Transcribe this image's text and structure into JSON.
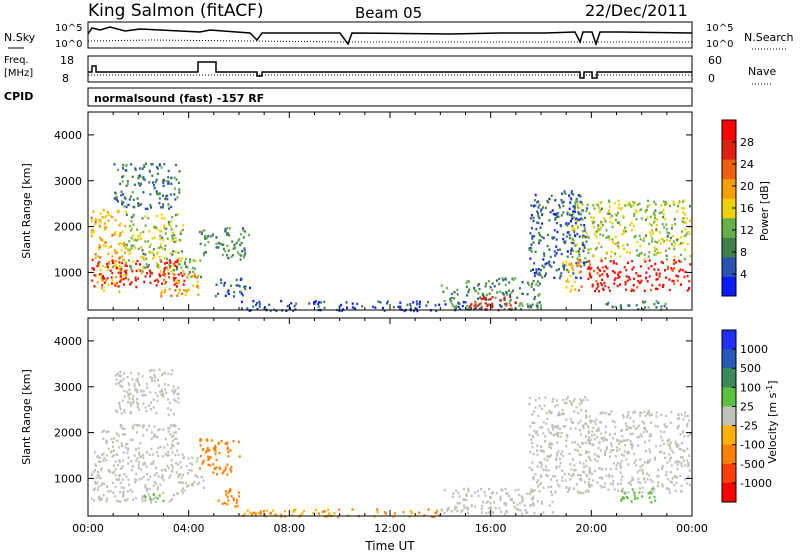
{
  "header": {
    "station": "King Salmon (fitACF)",
    "beam": "Beam 05",
    "date": "22/Dec/2011"
  },
  "params": {
    "nsky_label": "N.Sky",
    "nsky_ticks": [
      "10^5",
      "10^0"
    ],
    "nsearch_label": "N.Search",
    "freq_label_1": "Freq.",
    "freq_label_2": "[MHz]",
    "freq_ticks": [
      "18",
      "8"
    ],
    "nave_label": "Nave",
    "nave_ticks": [
      "60",
      "0"
    ],
    "cpid_label": "CPID",
    "cpid_text": "normalsound (fast) -157 RF"
  },
  "colors": {
    "power_scale": [
      "#0a1aff",
      "#2a52b0",
      "#3f7f4a",
      "#66b04a",
      "#f0d000",
      "#f5a000",
      "#ee6010",
      "#e02010",
      "#ff0000"
    ],
    "velocity_scale": [
      "#2030ff",
      "#2858b8",
      "#3a8a5a",
      "#5cc040",
      "#c0c0b8",
      "#ffb000",
      "#ff8000",
      "#ff4000",
      "#ff0000"
    ]
  },
  "chart_data": [
    {
      "type": "heatmap",
      "name": "power-panel",
      "xlabel": "",
      "ylabel": "Slant Range [km]",
      "ylim": [
        180,
        4500
      ],
      "xlim_hours": [
        0,
        24
      ],
      "yticks": [
        "1000",
        "2000",
        "3000",
        "4000"
      ],
      "colorbar": {
        "label": "Power [dB]",
        "range": [
          0,
          32
        ],
        "ticks": [
          "4",
          "8",
          "12",
          "16",
          "20",
          "24",
          "28"
        ]
      },
      "echo_regions": [
        {
          "t0": 0.1,
          "t1": 1.5,
          "r0": 600,
          "r1": 2400,
          "dB": 18
        },
        {
          "t0": 0.1,
          "t1": 3.8,
          "r0": 700,
          "r1": 1300,
          "dB": 28
        },
        {
          "t0": 1.5,
          "t1": 3.8,
          "r0": 1000,
          "r1": 2300,
          "dB": 14
        },
        {
          "t0": 1.0,
          "t1": 3.6,
          "r0": 2400,
          "r1": 3400,
          "dB": 8
        },
        {
          "t0": 2.8,
          "t1": 4.4,
          "r0": 500,
          "r1": 1000,
          "dB": 20
        },
        {
          "t0": 3.8,
          "t1": 4.5,
          "r0": 900,
          "r1": 1400,
          "dB": 12
        },
        {
          "t0": 4.4,
          "t1": 6.4,
          "r0": 1300,
          "r1": 2000,
          "dB": 10
        },
        {
          "t0": 5.0,
          "t1": 6.4,
          "r0": 500,
          "r1": 900,
          "dB": 6
        },
        {
          "t0": 6.0,
          "t1": 15.0,
          "r0": 180,
          "r1": 400,
          "dB": 4
        },
        {
          "t0": 14.0,
          "t1": 18.0,
          "r0": 200,
          "r1": 900,
          "dB": 10
        },
        {
          "t0": 15.0,
          "t1": 17.0,
          "r0": 200,
          "r1": 500,
          "dB": 28
        },
        {
          "t0": 17.5,
          "t1": 19.8,
          "r0": 900,
          "r1": 2800,
          "dB": 6
        },
        {
          "t0": 18.8,
          "t1": 19.6,
          "r0": 600,
          "r1": 1300,
          "dB": 18
        },
        {
          "t0": 19.2,
          "t1": 23.9,
          "r0": 1300,
          "r1": 2600,
          "dB": 14
        },
        {
          "t0": 19.8,
          "t1": 23.9,
          "r0": 600,
          "r1": 1300,
          "dB": 28
        },
        {
          "t0": 20.5,
          "t1": 23.0,
          "r0": 200,
          "r1": 400,
          "dB": 8
        }
      ]
    },
    {
      "type": "heatmap",
      "name": "velocity-panel",
      "xlabel": "Time UT",
      "ylabel": "Slant Range [km]",
      "ylim": [
        180,
        4500
      ],
      "xlim_hours": [
        0,
        24
      ],
      "xticks": [
        "00:00",
        "04:00",
        "08:00",
        "12:00",
        "16:00",
        "20:00",
        "00:00"
      ],
      "yticks": [
        "1000",
        "2000",
        "3000",
        "4000"
      ],
      "colorbar": {
        "label": "Velocity [m s^-1]",
        "ticks": [
          "1000",
          "500",
          "100",
          "25",
          "-25",
          "-100",
          "-500",
          "-1000"
        ]
      },
      "echo_regions": [
        {
          "t0": 0.1,
          "t1": 3.8,
          "r0": 500,
          "r1": 1600,
          "v": 0
        },
        {
          "t0": 0.5,
          "t1": 3.6,
          "r0": 1500,
          "r1": 2200,
          "v": 0
        },
        {
          "t0": 1.0,
          "t1": 3.6,
          "r0": 2400,
          "r1": 3400,
          "v": 0
        },
        {
          "t0": 2.2,
          "t1": 3.0,
          "r0": 500,
          "r1": 700,
          "v": 80
        },
        {
          "t0": 3.8,
          "t1": 4.6,
          "r0": 800,
          "r1": 1500,
          "v": 0
        },
        {
          "t0": 4.4,
          "t1": 6.0,
          "r0": 1100,
          "r1": 1900,
          "v": -300
        },
        {
          "t0": 5.0,
          "t1": 6.0,
          "r0": 400,
          "r1": 800,
          "v": -150
        },
        {
          "t0": 6.0,
          "t1": 14.0,
          "r0": 180,
          "r1": 350,
          "v": -100
        },
        {
          "t0": 14.0,
          "t1": 18.5,
          "r0": 250,
          "r1": 800,
          "v": 0
        },
        {
          "t0": 17.5,
          "t1": 19.8,
          "r0": 700,
          "r1": 2800,
          "v": 0
        },
        {
          "t0": 19.8,
          "t1": 23.9,
          "r0": 700,
          "r1": 2500,
          "v": 0
        },
        {
          "t0": 21.0,
          "t1": 22.5,
          "r0": 500,
          "r1": 800,
          "v": 80
        }
      ]
    }
  ]
}
